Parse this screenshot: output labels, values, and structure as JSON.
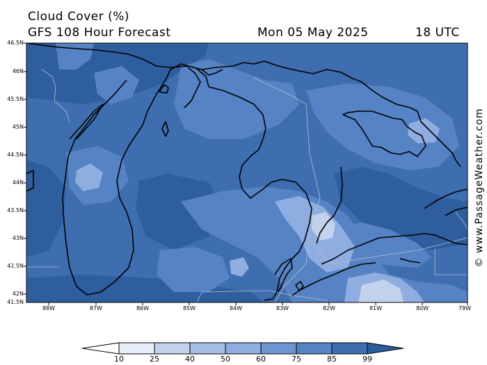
{
  "header": {
    "title": "Cloud Cover (%)",
    "subtitle": "GFS 108 Hour Forecast",
    "date": "Mon 05 May 2025",
    "time": "18 UTC"
  },
  "credit": "© www.PassageWeather.com",
  "axes": {
    "lat_labels": [
      "46.5N",
      "46N",
      "45.5N",
      "45N",
      "44.5N",
      "44N",
      "43.5N",
      "43N",
      "42.5N",
      "42N",
      "41.5N"
    ],
    "lon_labels": [
      "88W",
      "87W",
      "86W",
      "85W",
      "84W",
      "83W",
      "82W",
      "81W",
      "80W",
      "79W"
    ]
  },
  "colorbar": {
    "levels": [
      "10",
      "25",
      "40",
      "50",
      "60",
      "75",
      "85",
      "99"
    ],
    "colors": [
      "#ffffff",
      "#e6eefa",
      "#c3d2ec",
      "#a7bfe3",
      "#8fade0",
      "#6e95d1",
      "#5683c4",
      "#3e6eb0",
      "#2b5d98"
    ]
  },
  "map": {
    "background_color": "#3e6eb0",
    "coastline_color": "#000000",
    "border_color": "#b5bfd2"
  }
}
